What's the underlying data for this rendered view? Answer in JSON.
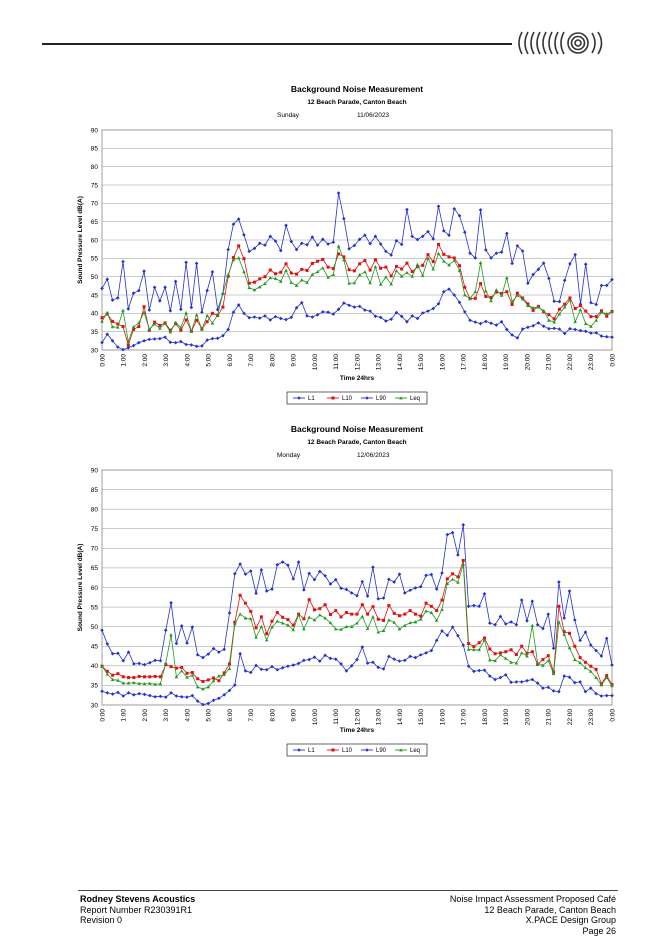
{
  "header": {
    "logo_icon": "concentric-arcs-logo-icon"
  },
  "chart_data": [
    {
      "type": "line",
      "title": "Background Noise Measurement",
      "subtitle": "12 Beach Parade, Canton Beach",
      "day": "Sunday",
      "date": "11/06/2023",
      "xlabel": "Time 24hrs",
      "ylabel": "Sound Pressure Level dB(A)",
      "ylim": [
        30,
        90
      ],
      "yticks": [
        30,
        35,
        40,
        45,
        50,
        55,
        60,
        65,
        70,
        75,
        80,
        85,
        90
      ],
      "xticks": [
        "0:00",
        "1:00",
        "2:00",
        "3:00",
        "4:00",
        "5:00",
        "6:00",
        "7:00",
        "8:00",
        "9:00",
        "10:00",
        "11:00",
        "12:00",
        "13:00",
        "14:00",
        "15:00",
        "16:00",
        "17:00",
        "18:00",
        "19:00",
        "20:00",
        "21:00",
        "22:00",
        "23:00",
        "0:00"
      ],
      "grid": true,
      "legend_position": "bottom-center",
      "series": [
        {
          "name": "L1",
          "color": "#2233cc",
          "marker": "diamond",
          "values": [
            46.8,
            49.3,
            43.6,
            44.2,
            54.1,
            41.2,
            45.5,
            46.2,
            51.5,
            40.9,
            47.1,
            43.4,
            47.1,
            40.7,
            48.7,
            41.1,
            53.9,
            41.6,
            53.6,
            40.3,
            46.2,
            51.3,
            41.0,
            45.4,
            57.4,
            64.3,
            65.7,
            61.4,
            56.9,
            57.7,
            59.1,
            58.6,
            61.0,
            59.7,
            57.1,
            64.0,
            59.6,
            57.4,
            59.1,
            58.7,
            60.8,
            58.6,
            60.2,
            58.9,
            59.4,
            72.8,
            65.8,
            57.6,
            58.5,
            60.2,
            61.3,
            59.0,
            61.0,
            58.9,
            56.9,
            55.9,
            59.8,
            58.8,
            68.3,
            61.0,
            60.1,
            61.0,
            62.3,
            60.3,
            69.2,
            62.5,
            61.3,
            68.5,
            66.6,
            62.1,
            56.4,
            55.1,
            68.2,
            57.3,
            55.1,
            56.4,
            56.7,
            61.8,
            53.6,
            58.4,
            57.0,
            48.2,
            50.6,
            52.0,
            53.7,
            49.5,
            43.3,
            43.2,
            49.0,
            53.5,
            56.0,
            42.5,
            53.4,
            42.9,
            42.4,
            47.6,
            47.6,
            49.2
          ]
        },
        {
          "name": "L10",
          "color": "#dd1111",
          "marker": "square",
          "values": [
            38.8,
            39.8,
            37.8,
            37.1,
            36.4,
            31.3,
            35.6,
            36.4,
            41.8,
            35.4,
            37.6,
            36.7,
            37.4,
            35.4,
            37.2,
            35.4,
            38.2,
            35.1,
            38.1,
            35.9,
            37.7,
            40.0,
            39.4,
            41.7,
            50.1,
            55.2,
            58.4,
            54.9,
            48.2,
            48.5,
            49.4,
            50.0,
            51.8,
            50.8,
            51.2,
            53.5,
            51.0,
            50.7,
            52.0,
            51.7,
            53.6,
            54.2,
            54.7,
            52.6,
            52.2,
            56.2,
            55.4,
            51.9,
            51.6,
            53.5,
            54.4,
            51.8,
            54.6,
            52.3,
            52.6,
            50.2,
            52.8,
            52.1,
            53.7,
            51.4,
            52.7,
            53.1,
            56.0,
            54.1,
            58.8,
            56.1,
            55.4,
            55.1,
            53.0,
            47.1,
            44.0,
            44.1,
            48.1,
            44.6,
            44.3,
            45.8,
            45.4,
            45.9,
            42.4,
            45.5,
            44.2,
            42.6,
            40.8,
            41.9,
            40.4,
            39.6,
            38.5,
            41.1,
            42.5,
            44.2,
            41.3,
            42.1,
            40.6,
            39.1,
            39.1,
            40.7,
            39.2,
            40.5
          ]
        },
        {
          "name": "L90",
          "color": "#2233cc",
          "marker": "diamond",
          "values": [
            32.0,
            34.3,
            32.5,
            30.8,
            30.1,
            30.6,
            31.2,
            32.0,
            32.5,
            32.9,
            33.0,
            33.1,
            33.5,
            32.1,
            32.0,
            32.3,
            31.5,
            31.4,
            31.0,
            31.1,
            32.7,
            33.1,
            33.2,
            33.9,
            35.6,
            40.3,
            42.3,
            40.0,
            38.8,
            39.0,
            38.7,
            39.3,
            38.2,
            39.1,
            38.6,
            38.3,
            38.9,
            41.5,
            42.9,
            39.3,
            39.0,
            39.6,
            40.4,
            40.3,
            39.8,
            41.1,
            42.8,
            42.2,
            41.7,
            41.9,
            40.9,
            40.6,
            39.2,
            38.9,
            37.9,
            38.4,
            40.2,
            39.2,
            37.7,
            39.3,
            38.6,
            40.1,
            40.6,
            41.3,
            42.6,
            45.9,
            46.6,
            45.0,
            43.0,
            40.4,
            38.1,
            37.6,
            37.2,
            37.8,
            37.3,
            36.8,
            37.7,
            35.6,
            34.1,
            33.3,
            35.7,
            36.2,
            36.6,
            37.4,
            36.5,
            35.8,
            35.9,
            35.7,
            34.5,
            35.8,
            35.6,
            35.3,
            35.1,
            34.6,
            34.7,
            33.8,
            33.6,
            33.5
          ]
        },
        {
          "name": "Leq",
          "color": "#229922",
          "marker": "triangle",
          "values": [
            37.8,
            40.2,
            36.3,
            36.2,
            40.8,
            32.3,
            36.3,
            37.4,
            40.2,
            35.7,
            37.1,
            35.9,
            37.2,
            34.9,
            37.5,
            36.1,
            40.1,
            35.1,
            39.6,
            35.6,
            39.4,
            37.3,
            39.6,
            45.5,
            50.5,
            54.6,
            55.1,
            51.3,
            47.0,
            46.4,
            47.2,
            48.1,
            49.7,
            49.5,
            48.7,
            51.7,
            48.4,
            47.6,
            49.1,
            48.4,
            50.6,
            51.3,
            52.4,
            49.8,
            50.6,
            58.3,
            54.6,
            48.2,
            48.3,
            50.5,
            51.3,
            48.3,
            52.7,
            47.9,
            49.9,
            48.0,
            51.6,
            50.1,
            51.1,
            50.1,
            53.3,
            50.3,
            55.0,
            52.1,
            56.3,
            54.2,
            53.2,
            54.4,
            51.7,
            45.0,
            44.0,
            45.9,
            53.8,
            46.1,
            43.4,
            46.4,
            44.9,
            49.7,
            43.2,
            44.9,
            43.9,
            42.1,
            41.5,
            41.7,
            40.7,
            38.1,
            37.6,
            39.8,
            41.7,
            43.6,
            37.7,
            41.0,
            37.2,
            36.4,
            38.1,
            40.3,
            39.9,
            40.4
          ]
        }
      ]
    },
    {
      "type": "line",
      "title": "Background Noise Measurement",
      "subtitle": "12 Beach Parade, Canton Beach",
      "day": "Monday",
      "date": "12/06/2023",
      "xlabel": "Time 24hrs",
      "ylabel": "Sound Pressure Level dB(A)",
      "ylim": [
        30,
        90
      ],
      "yticks": [
        30,
        35,
        40,
        45,
        50,
        55,
        60,
        65,
        70,
        75,
        80,
        85,
        90
      ],
      "xticks": [
        "0:00",
        "1:00",
        "2:00",
        "3:00",
        "4:00",
        "5:00",
        "6:00",
        "7:00",
        "8:00",
        "9:00",
        "10:00",
        "11:00",
        "12:00",
        "13:00",
        "14:00",
        "15:00",
        "16:00",
        "17:00",
        "18:00",
        "19:00",
        "20:00",
        "21:00",
        "22:00",
        "23:00",
        "0:00"
      ],
      "grid": true,
      "legend_position": "bottom-center",
      "series": [
        {
          "name": "L1",
          "color": "#2233cc",
          "marker": "diamond",
          "values": [
            49.1,
            45.6,
            43.1,
            43.2,
            41.3,
            43.5,
            40.5,
            40.6,
            40.3,
            40.8,
            41.4,
            41.3,
            49.1,
            56.1,
            45.7,
            50.2,
            45.8,
            49.9,
            42.8,
            42.1,
            43.0,
            44.4,
            43.5,
            44.2,
            53.5,
            63.5,
            66.0,
            63.4,
            64.2,
            58.5,
            64.5,
            59.1,
            59.6,
            65.8,
            66.5,
            65.7,
            62.2,
            66.5,
            59.4,
            63.6,
            62.0,
            64.1,
            63.0,
            60.9,
            62.0,
            59.8,
            59.5,
            58.6,
            57.9,
            61.5,
            57.8,
            65.2,
            57.1,
            57.3,
            62.1,
            61.4,
            63.4,
            58.6,
            59.3,
            59.9,
            60.2,
            63.1,
            63.3,
            59.6,
            63.7,
            73.5,
            74.0,
            68.3,
            76.0,
            55.2,
            55.4,
            55.2,
            58.4,
            50.9,
            50.5,
            52.6,
            50.7,
            51.2,
            50.5,
            56.8,
            51.5,
            56.5,
            50.5,
            49.5,
            53.2,
            44.5,
            61.4,
            52.2,
            59.1,
            51.7,
            46.5,
            48.6,
            45.3,
            43.9,
            42.5,
            47.0,
            40.2
          ]
        },
        {
          "name": "L10",
          "color": "#dd1111",
          "marker": "square",
          "values": [
            39.9,
            38.6,
            37.6,
            38.0,
            37.2,
            37.0,
            37.0,
            37.3,
            37.2,
            37.2,
            37.3,
            37.2,
            40.3,
            39.8,
            39.4,
            39.6,
            38.1,
            38.3,
            36.7,
            36.0,
            36.4,
            36.9,
            36.2,
            38.2,
            40.5,
            51.1,
            58.0,
            56.0,
            53.9,
            49.7,
            52.5,
            48.2,
            51.4,
            53.6,
            52.4,
            51.8,
            50.4,
            53.2,
            52.0,
            56.9,
            54.3,
            54.6,
            55.6,
            53.1,
            54.1,
            52.5,
            53.6,
            53.2,
            53.2,
            55.6,
            53.2,
            55.1,
            51.9,
            51.6,
            55.4,
            53.4,
            52.8,
            53.2,
            54.1,
            53.2,
            52.7,
            56.0,
            55.2,
            54.1,
            56.8,
            62.2,
            63.5,
            62.7,
            66.9,
            45.7,
            44.9,
            45.9,
            47.1,
            44.3,
            43.1,
            43.3,
            43.6,
            44.1,
            42.9,
            45.0,
            43.2,
            43.6,
            40.4,
            41.6,
            42.6,
            38.4,
            55.2,
            48.7,
            48.3,
            45.0,
            42.1,
            40.9,
            39.9,
            39.1,
            35.4,
            37.5,
            35.2
          ]
        },
        {
          "name": "L90",
          "color": "#2233cc",
          "marker": "diamond",
          "values": [
            33.5,
            33.1,
            32.8,
            33.2,
            32.3,
            33.1,
            32.6,
            32.9,
            32.7,
            32.4,
            32.1,
            32.2,
            32.0,
            33.1,
            32.3,
            32.1,
            32.0,
            32.4,
            31.0,
            30.1,
            30.4,
            31.2,
            31.7,
            32.6,
            33.7,
            35.1,
            43.1,
            38.7,
            38.3,
            40.1,
            39.1,
            39.0,
            39.8,
            39.0,
            39.5,
            39.9,
            40.2,
            40.6,
            41.4,
            41.6,
            42.2,
            41.2,
            42.7,
            41.9,
            41.7,
            40.5,
            38.7,
            40.0,
            41.6,
            44.8,
            40.7,
            40.9,
            39.6,
            39.2,
            42.4,
            41.7,
            41.2,
            41.4,
            42.4,
            42.1,
            42.8,
            43.3,
            43.9,
            46.5,
            48.9,
            47.8,
            49.9,
            47.7,
            45.3,
            39.9,
            38.6,
            38.8,
            38.9,
            37.4,
            36.5,
            37.0,
            37.7,
            35.8,
            35.9,
            35.9,
            36.2,
            36.5,
            35.6,
            34.3,
            34.5,
            33.6,
            33.4,
            37.4,
            37.1,
            35.7,
            35.9,
            33.4,
            34.3,
            32.9,
            32.3,
            32.4,
            32.4
          ]
        },
        {
          "name": "Leq",
          "color": "#229922",
          "marker": "triangle",
          "values": [
            39.9,
            37.9,
            36.5,
            36.3,
            35.6,
            35.6,
            35.7,
            35.5,
            35.4,
            35.5,
            35.3,
            35.4,
            40.7,
            47.9,
            37.2,
            38.7,
            37.1,
            37.6,
            34.6,
            34.1,
            34.6,
            36.2,
            37.4,
            37.8,
            39.3,
            50.7,
            53.2,
            52.2,
            52.0,
            47.3,
            50.0,
            46.6,
            49.9,
            51.4,
            50.9,
            50.4,
            49.2,
            53.0,
            49.4,
            52.4,
            51.7,
            53.0,
            52.2,
            51.0,
            49.4,
            49.3,
            50.0,
            50.0,
            50.9,
            52.6,
            49.5,
            52.5,
            48.6,
            49.0,
            51.7,
            51.1,
            49.4,
            50.3,
            51.0,
            51.2,
            51.9,
            54.0,
            53.6,
            51.6,
            54.4,
            61.0,
            62.1,
            61.3,
            65.9,
            44.2,
            44.1,
            44.1,
            46.6,
            41.5,
            41.3,
            42.8,
            41.9,
            40.9,
            40.7,
            43.3,
            42.5,
            50.3,
            40.7,
            40.1,
            41.3,
            38.0,
            51.2,
            48.0,
            44.6,
            41.6,
            40.8,
            39.5,
            38.6,
            37.0,
            35.1,
            37.0,
            34.9
          ]
        }
      ]
    }
  ],
  "footer": {
    "company": "Rodney Stevens Acoustics",
    "report": "Report Number R230391R1",
    "revision": "Revision 0",
    "doc_title": "Noise Impact Assessment  Proposed Café",
    "address": "12 Beach Parade, Canton Beach",
    "client": "X.PACE Design Group",
    "page": "Page 26"
  }
}
